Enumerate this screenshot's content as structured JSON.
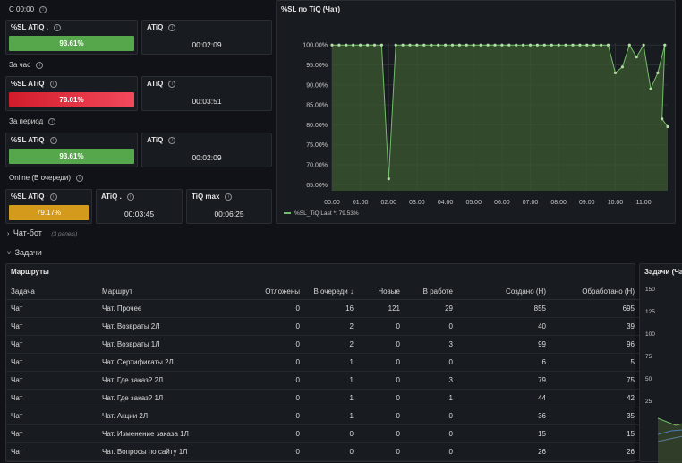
{
  "sections": {
    "since_midnight": "С 00:00",
    "hour": "За час",
    "period": "За период",
    "online": "Online (В очереди)"
  },
  "stats": {
    "s1": {
      "sl_title": "%SL ATiQ .",
      "sl_value": "93.61%",
      "sl_fill": 0.9361,
      "sl_color": "#56a64b",
      "atiq_title": "ATiQ",
      "atiq_value": "00:02:09"
    },
    "s2": {
      "sl_title": "%SL ATiQ",
      "sl_value": "78.01%",
      "sl_fill": 0.7801,
      "sl_color": "#e02f44",
      "atiq_title": "ATiQ",
      "atiq_value": "00:03:51"
    },
    "s3": {
      "sl_title": "%SL ATiQ",
      "sl_value": "93.61%",
      "sl_fill": 0.9361,
      "sl_color": "#56a64b",
      "atiq_title": "ATiQ",
      "atiq_value": "00:02:09"
    },
    "s4": {
      "sl_title": "%SL ATiQ",
      "sl_value": "79.17%",
      "sl_fill": 0.7917,
      "sl_color": "#e0a020",
      "atiq_title": "ATiQ .",
      "atiq_value": "00:03:45",
      "tiq_title": "TiQ max",
      "tiq_value": "00:06:25"
    }
  },
  "rows": {
    "chatbot": {
      "label": "Чат-бот",
      "note": "(3 panels)"
    },
    "tasks": {
      "label": "Задачи"
    }
  },
  "table": {
    "title": "Маршруты",
    "columns": [
      "Задача",
      "Маршрут",
      "Отложены",
      "В очереди ↓",
      "Новые",
      "В работе",
      "Создано (Н)",
      "Обработано (Н)"
    ],
    "rows": [
      [
        "Чат",
        "Чат. Прочее",
        "0",
        "16",
        "121",
        "29",
        "855",
        "695"
      ],
      [
        "Чат",
        "Чат. Возвраты 2Л",
        "0",
        "2",
        "0",
        "0",
        "40",
        "39"
      ],
      [
        "Чат",
        "Чат. Возвраты 1Л",
        "0",
        "2",
        "0",
        "3",
        "99",
        "96"
      ],
      [
        "Чат",
        "Чат. Сертификаты 2Л",
        "0",
        "1",
        "0",
        "0",
        "6",
        "5"
      ],
      [
        "Чат",
        "Чат. Где заказ? 2Л",
        "0",
        "1",
        "0",
        "3",
        "79",
        "75"
      ],
      [
        "Чат",
        "Чат. Где заказ? 1Л",
        "0",
        "1",
        "0",
        "1",
        "44",
        "42"
      ],
      [
        "Чат",
        "Чат. Акции 2Л",
        "0",
        "1",
        "0",
        "0",
        "36",
        "35"
      ],
      [
        "Чат",
        "Чат. Изменение заказа 1Л",
        "0",
        "0",
        "0",
        "0",
        "15",
        "15"
      ],
      [
        "Чат",
        "Чат. Вопросы по сайту 1Л",
        "0",
        "0",
        "0",
        "0",
        "26",
        "26"
      ]
    ]
  },
  "side_panel": {
    "title": "Задачи (Чат",
    "ticks": [
      "150",
      "125",
      "100",
      "75",
      "50",
      "25"
    ]
  },
  "chart_data": {
    "type": "line",
    "title": "%SL по TiQ (Чат)",
    "x_ticks": [
      "00:00",
      "01:00",
      "02:00",
      "03:00",
      "04:00",
      "05:00",
      "06:00",
      "07:00",
      "08:00",
      "09:00",
      "10:00",
      "11:00"
    ],
    "y_ticks": [
      "100.00%",
      "95.00%",
      "90.00%",
      "85.00%",
      "80.00%",
      "75.00%",
      "70.00%",
      "65.00%"
    ],
    "ylim": [
      63.5,
      100.5
    ],
    "xlim": [
      0,
      11.85
    ],
    "series": [
      {
        "name": "%SL_TiQ",
        "legend": "%SL_TiQ   Last *: 79.53%",
        "color": "#73bf69",
        "x": [
          0,
          0.25,
          0.5,
          0.75,
          1,
          1.25,
          1.5,
          1.75,
          2,
          2.25,
          2.5,
          2.75,
          3,
          3.25,
          3.5,
          3.75,
          4,
          4.25,
          4.5,
          4.75,
          5,
          5.25,
          5.5,
          5.75,
          6,
          6.25,
          6.5,
          6.75,
          7,
          7.25,
          7.5,
          7.75,
          8,
          8.25,
          8.5,
          8.75,
          9,
          9.25,
          9.5,
          9.75,
          10,
          10.25,
          10.5,
          10.75,
          11,
          11.25,
          11.5,
          11.75
        ],
        "y": [
          100,
          100,
          100,
          100,
          100,
          100,
          100,
          100,
          66.5,
          100,
          100,
          100,
          100,
          100,
          100,
          100,
          100,
          100,
          100,
          100,
          100,
          100,
          100,
          100,
          100,
          100,
          100,
          100,
          100,
          100,
          100,
          100,
          100,
          100,
          100,
          100,
          100,
          100,
          100,
          100,
          93,
          94.5,
          100,
          97,
          100,
          89,
          93,
          100
        ]
      }
    ],
    "tail": {
      "x": [
        11.65,
        11.85
      ],
      "y": [
        81.5,
        79.53
      ]
    }
  }
}
